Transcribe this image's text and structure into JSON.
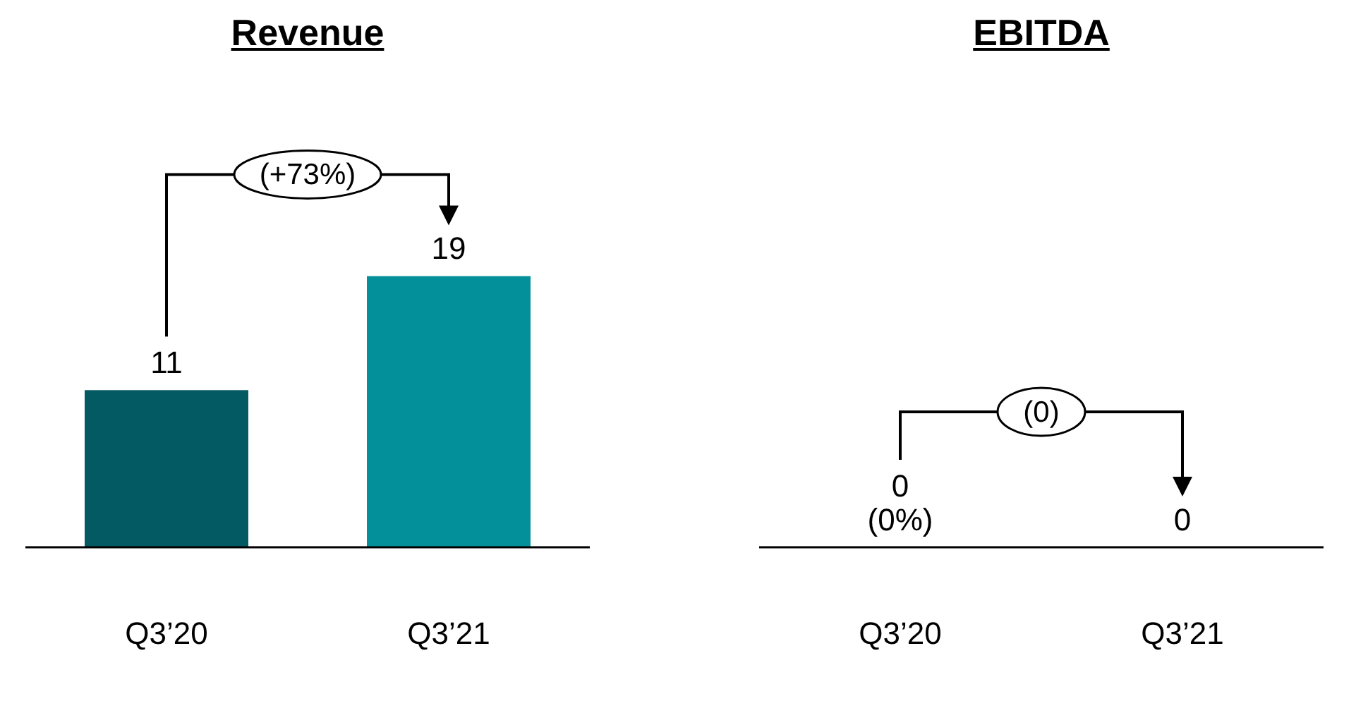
{
  "chart_data": [
    {
      "type": "bar",
      "title": "Revenue",
      "categories": [
        "Q3’20",
        "Q3’21"
      ],
      "values": [
        11,
        19
      ],
      "colors": [
        "#045a62",
        "#04909a"
      ],
      "data_labels": true,
      "annotations": [
        "(+73%)"
      ]
    },
    {
      "type": "other",
      "title": "EBITDA",
      "categories": [
        "Q3’20",
        "Q3’21"
      ],
      "values": [
        0,
        0
      ],
      "value_labels": [
        "0\n(0%)",
        "0"
      ],
      "annotations": [
        "(0)"
      ]
    }
  ]
}
